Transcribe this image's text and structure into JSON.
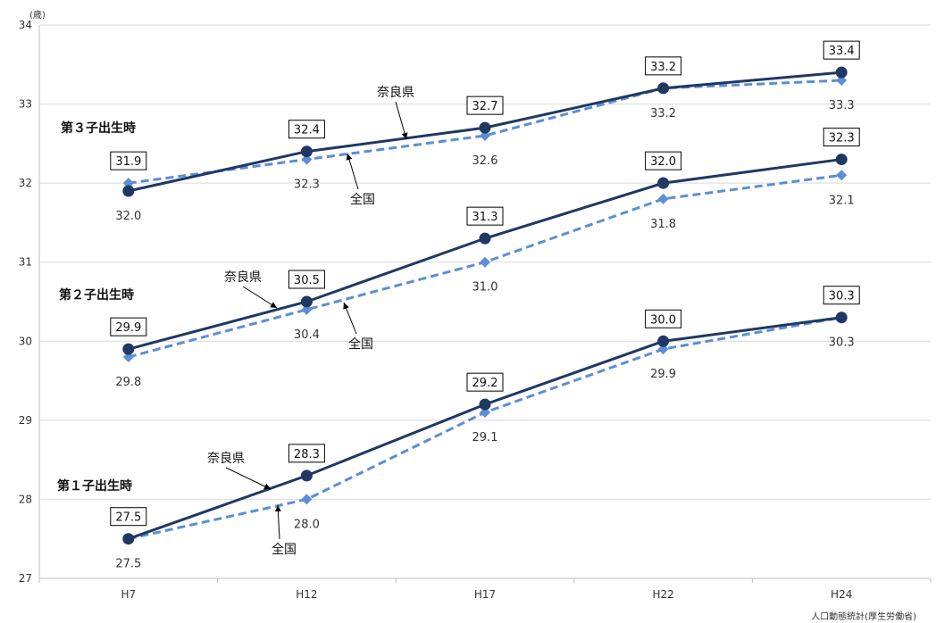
{
  "chart_data": {
    "type": "line",
    "unit": "(歳)",
    "source": "人口動態統計(厚生労働省)",
    "categories": [
      "H7",
      "H12",
      "H17",
      "H22",
      "H24"
    ],
    "ylim": [
      27,
      34
    ],
    "yticks": [
      "27",
      "28",
      "29",
      "30",
      "31",
      "32",
      "33",
      "34"
    ],
    "grid": true,
    "colors": {
      "nara": "#1f3864",
      "national": "#5b8ed6"
    },
    "groups": [
      {
        "label": "第３子出生時",
        "series": [
          {
            "name": "奈良県",
            "values": [
              31.9,
              32.4,
              32.7,
              33.2,
              33.4
            ],
            "labels": [
              "31.9",
              "32.4",
              "32.7",
              "33.2",
              "33.4"
            ]
          },
          {
            "name": "全国",
            "values": [
              32.0,
              32.3,
              32.6,
              33.2,
              33.3
            ],
            "labels": [
              "32.0",
              "32.3",
              "32.6",
              "33.2",
              "33.3"
            ]
          }
        ]
      },
      {
        "label": "第２子出生時",
        "series": [
          {
            "name": "奈良県",
            "values": [
              29.9,
              30.5,
              31.3,
              32.0,
              32.3
            ],
            "labels": [
              "29.9",
              "30.5",
              "31.3",
              "32.0",
              "32.3"
            ]
          },
          {
            "name": "全国",
            "values": [
              29.8,
              30.4,
              31.0,
              31.8,
              32.1
            ],
            "labels": [
              "29.8",
              "30.4",
              "31.0",
              "31.8",
              "32.1"
            ]
          }
        ]
      },
      {
        "label": "第１子出生時",
        "series": [
          {
            "name": "奈良県",
            "values": [
              27.5,
              28.3,
              29.2,
              30.0,
              30.3
            ],
            "labels": [
              "27.5",
              "28.3",
              "29.2",
              "30.0",
              "30.3"
            ]
          },
          {
            "name": "全国",
            "values": [
              27.5,
              28.0,
              29.1,
              29.9,
              30.3
            ],
            "labels": [
              "27.5",
              "28.0",
              "29.1",
              "29.9",
              "30.3"
            ]
          }
        ]
      }
    ]
  }
}
